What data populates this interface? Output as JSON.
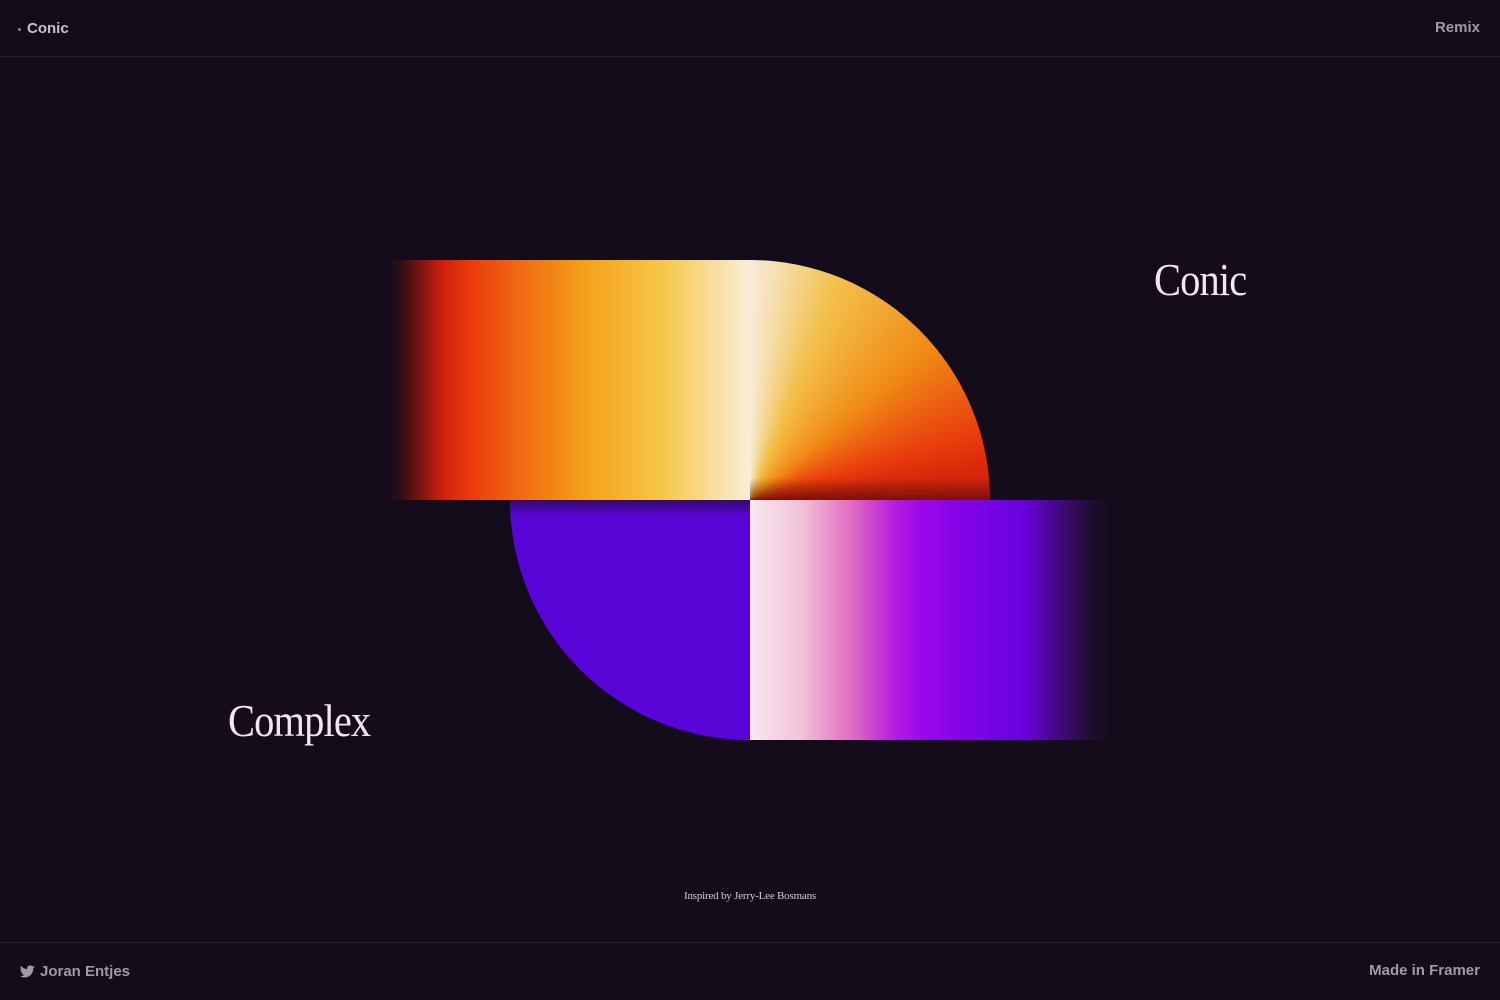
{
  "header": {
    "brand_label": "Conic",
    "remix_label": "Remix"
  },
  "hero": {
    "word_top": "Conic",
    "word_bottom": "Complex",
    "credit": "Inspired by Jerry-Lee Bosmans"
  },
  "footer": {
    "author_label": "Joran Entjes",
    "author_icon": "twitter-icon",
    "made_label": "Made in Framer"
  },
  "colors": {
    "background": "#140c1b",
    "divider": "#2a2232",
    "heading_text": "#f7e3ec",
    "nav_text": "#a19aa6",
    "warm_gradient": [
      "#e51f0b",
      "#f06012",
      "#f5a818",
      "#f8d35a",
      "#f7ecd8"
    ],
    "cool_gradient": [
      "#f5e6ee",
      "#e676b8",
      "#b21bd8",
      "#8b0ae6",
      "#5a05d8"
    ]
  }
}
